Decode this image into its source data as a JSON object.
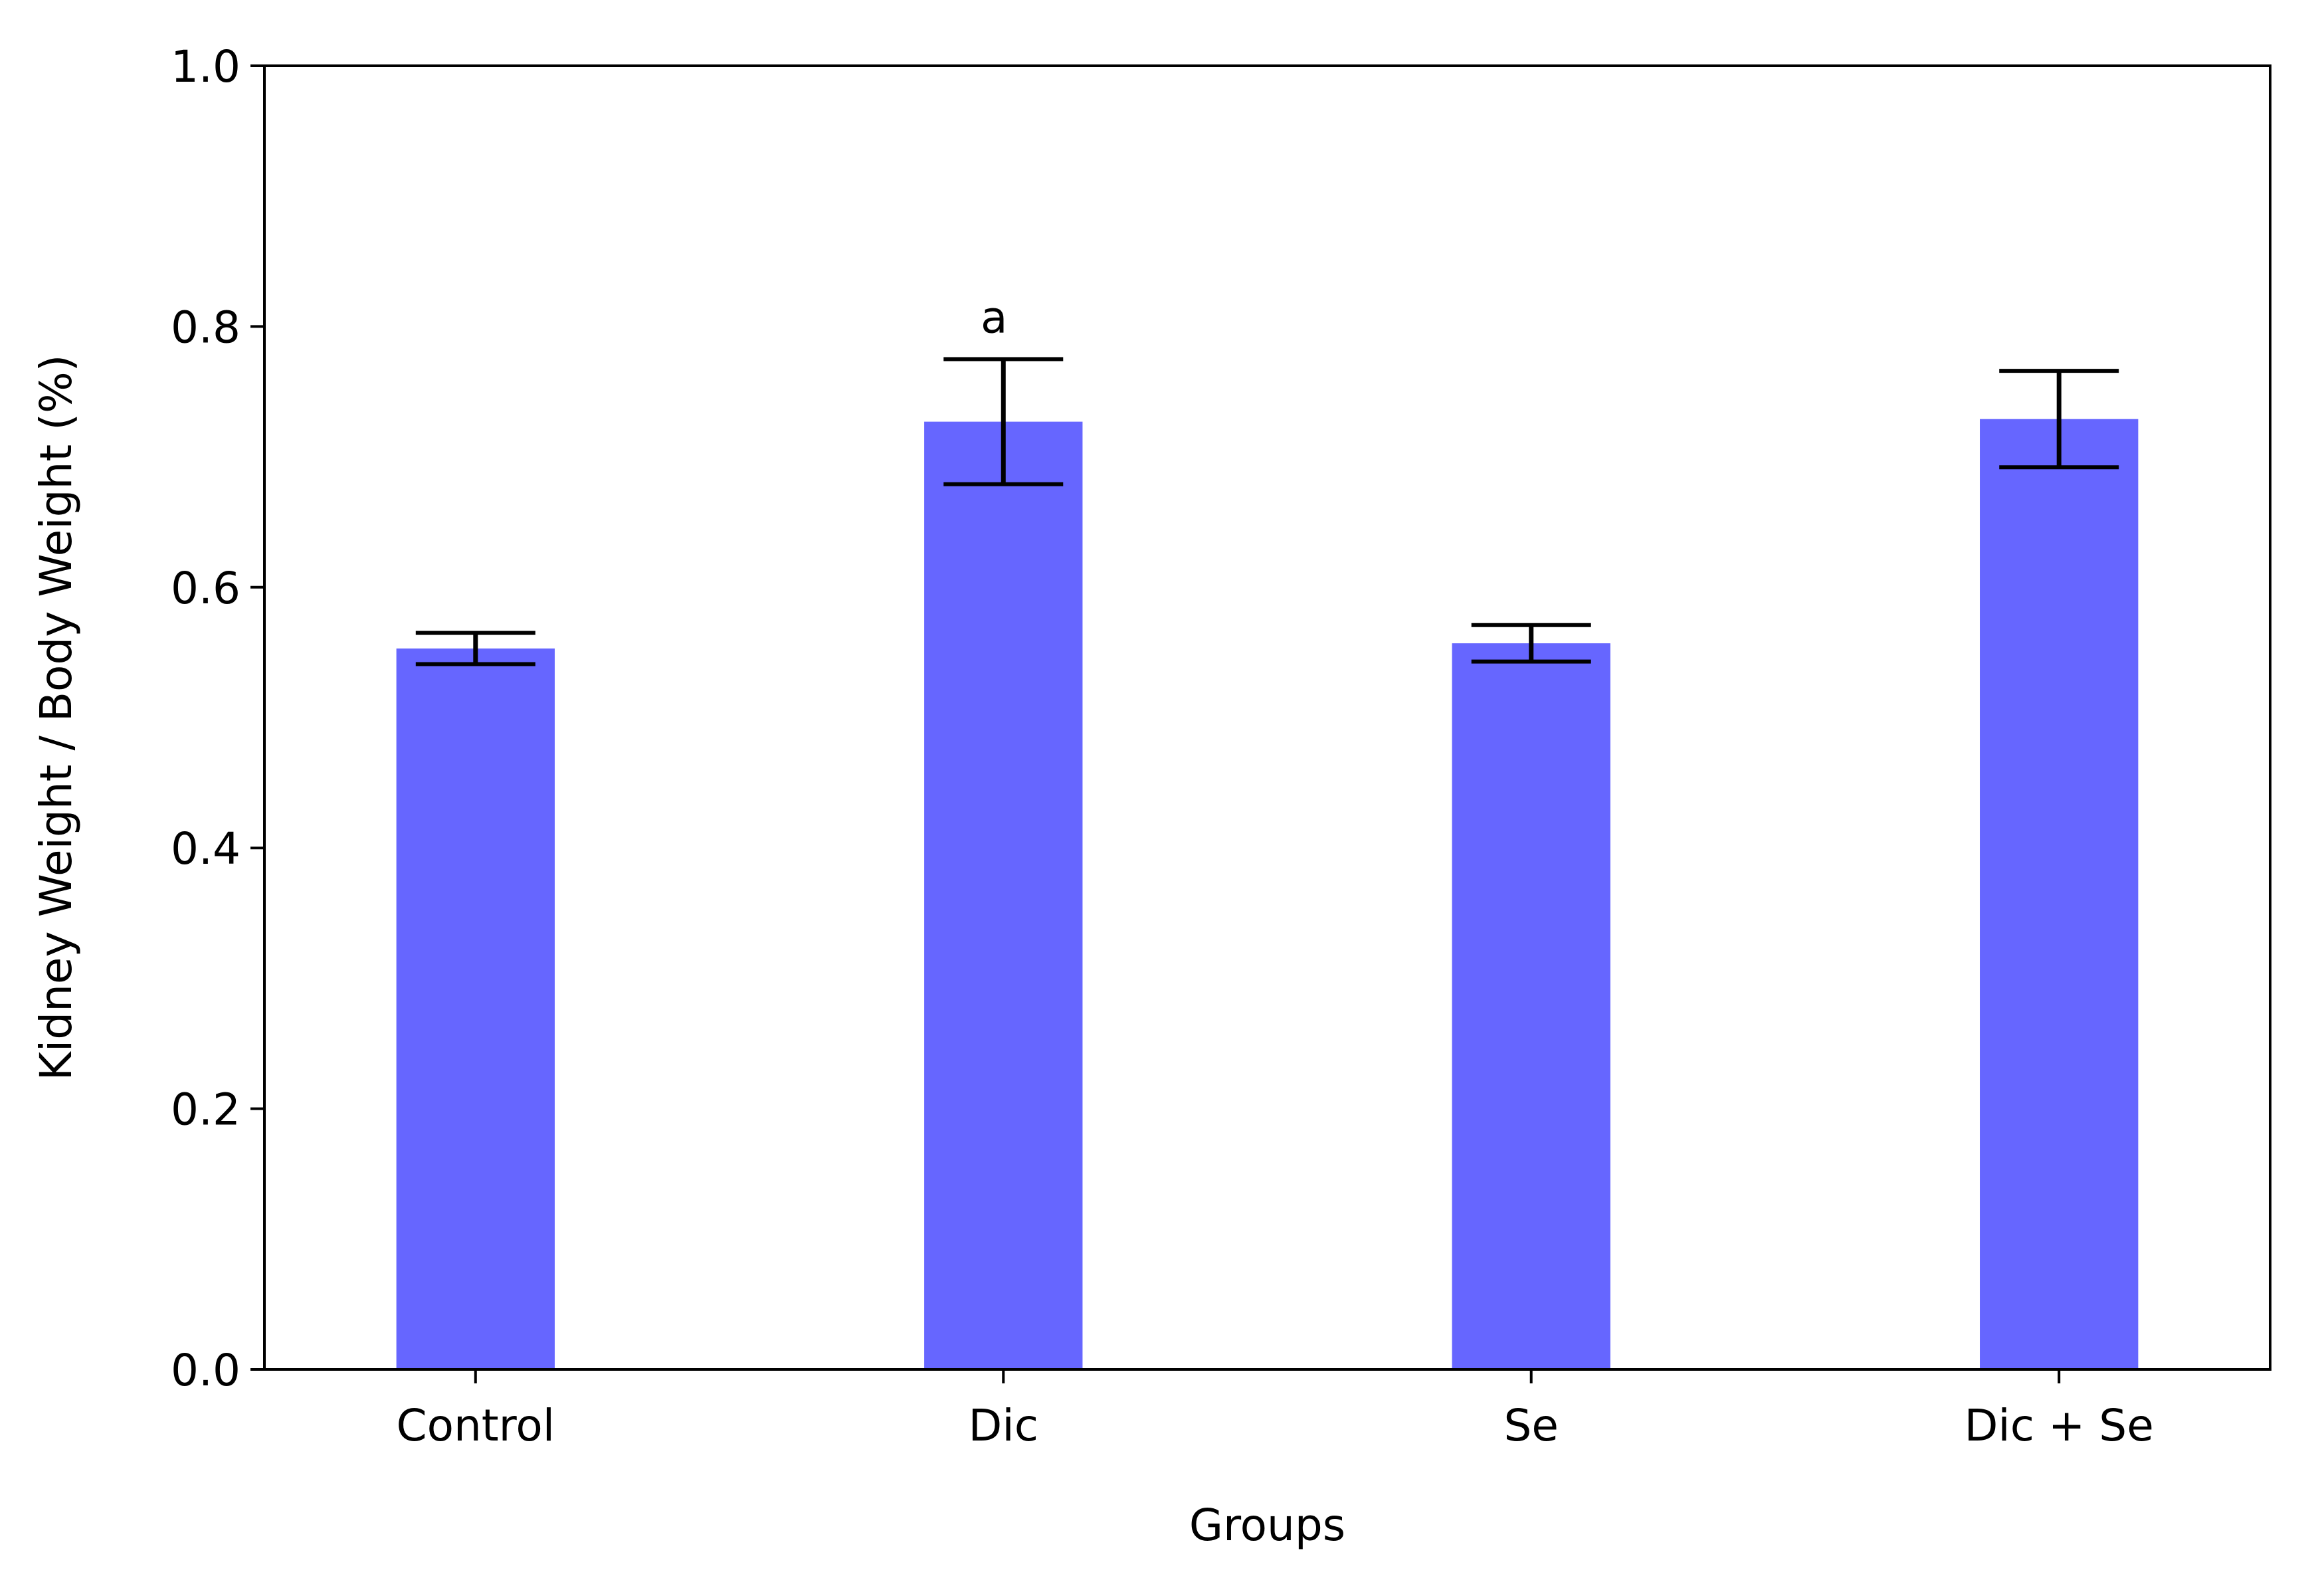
{
  "chart_data": {
    "type": "bar",
    "categories": [
      "Control",
      "Dic",
      "Se",
      "Dic + Se"
    ],
    "values": [
      0.553,
      0.727,
      0.557,
      0.729
    ],
    "errors": [
      0.012,
      0.048,
      0.014,
      0.037
    ],
    "annotations": [
      "",
      "a",
      "",
      ""
    ],
    "xlabel": "Groups",
    "ylabel": "Kidney Weight / Body Weight (%)",
    "ylim": [
      0,
      1.0
    ],
    "yticks": [
      0.0,
      0.2,
      0.4,
      0.6,
      0.8,
      1.0
    ],
    "ytick_labels": [
      "0.0",
      "0.2",
      "0.4",
      "0.6",
      "0.8",
      "1.0"
    ],
    "bar_color": "#6666ff",
    "error_color": "#000000",
    "grid": false,
    "legend": "none"
  }
}
